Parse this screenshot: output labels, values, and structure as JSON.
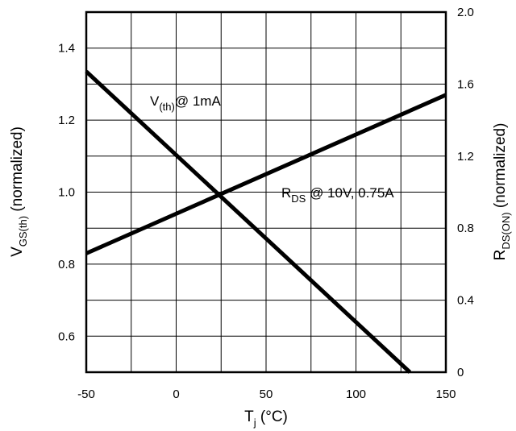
{
  "chart_data": {
    "type": "line",
    "x_axis": {
      "label_main": "T",
      "label_sub": "j",
      "label_unit": " (°C)",
      "lim": [
        -50,
        150
      ],
      "ticks": [
        -50,
        0,
        50,
        100,
        150
      ],
      "tick_labels": [
        "-50",
        "0",
        "50",
        "100",
        "150"
      ]
    },
    "y_axis_left": {
      "label_main": "V",
      "label_sub": "GS(th)",
      "label_suffix": " (normalized)",
      "lim": [
        0.5,
        1.5
      ],
      "ticks": [
        0.6,
        0.8,
        1.0,
        1.2,
        1.4
      ],
      "tick_labels": [
        "0.6",
        "0.8",
        "1.0",
        "1.2",
        "1.4"
      ]
    },
    "y_axis_right": {
      "label_main": "R",
      "label_sub": "DS(ON)",
      "label_suffix": " (normalized)",
      "lim": [
        0,
        2.0
      ],
      "ticks": [
        0,
        0.4,
        0.8,
        1.2,
        1.6,
        2.0
      ],
      "tick_labels": [
        "0",
        "0.4",
        "0.8",
        "1.2",
        "1.6",
        "2.0"
      ]
    },
    "grid": true,
    "series": [
      {
        "axis": "left",
        "label_main": "V",
        "label_sub": "(th)",
        "label_rest": "@ 1mA",
        "x": [
          -50,
          130
        ],
        "y": [
          1.335,
          0.5
        ]
      },
      {
        "axis": "right",
        "label_main": "R",
        "label_sub": "DS",
        "label_rest": " @ 10V, 0.75A",
        "x": [
          -50,
          150
        ],
        "y": [
          0.66,
          1.54
        ]
      }
    ]
  }
}
